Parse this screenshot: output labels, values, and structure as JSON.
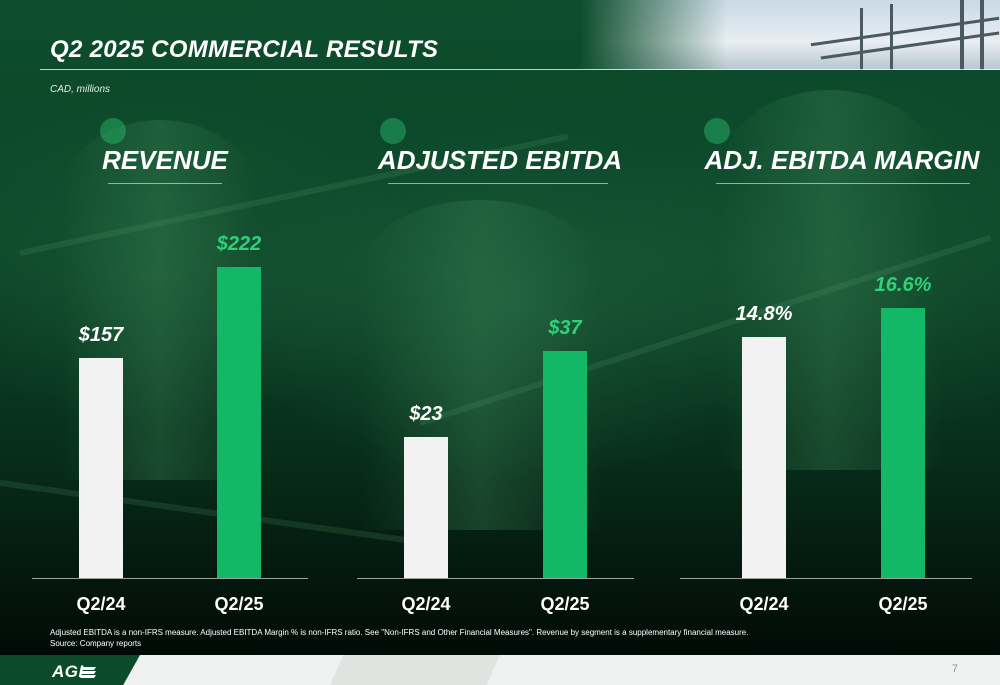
{
  "header": {
    "title": "Q2 2025 COMMERCIAL RESULTS",
    "unit_note": "CAD, millions"
  },
  "colors": {
    "prior_bar": "#f2f2f2",
    "current_bar": "#12b866",
    "current_label": "#2fd17a",
    "prior_label": "#ffffff",
    "background_green": "#0b4428"
  },
  "chart_data": [
    {
      "type": "bar",
      "title": "REVENUE",
      "categories": [
        "Q2/24",
        "Q2/25"
      ],
      "values": [
        157,
        222
      ],
      "labels": [
        "$157",
        "$222"
      ],
      "ylim": [
        0,
        250
      ]
    },
    {
      "type": "bar",
      "title": "ADJUSTED EBITDA",
      "categories": [
        "Q2/24",
        "Q2/25"
      ],
      "values": [
        23,
        37
      ],
      "labels": [
        "$23",
        "$37"
      ],
      "ylim": [
        0,
        57
      ]
    },
    {
      "type": "bar",
      "title": "ADJ. EBITDA MARGIN",
      "categories": [
        "Q2/24",
        "Q2/25"
      ],
      "values": [
        14.8,
        16.6
      ],
      "labels": [
        "14.8%",
        "16.6%"
      ],
      "ylim": [
        0,
        21.5
      ]
    }
  ],
  "footnote": {
    "line1": "Adjusted EBITDA is a non-IFRS measure. Adjusted EBITDA Margin % is non-IFRS ratio. See \"Non-IFRS and Other Financial Measures\". Revenue by segment is a supplementary financial measure.",
    "line2": "Source: Company reports"
  },
  "footer": {
    "logo": "AGI",
    "page_number": "7"
  }
}
